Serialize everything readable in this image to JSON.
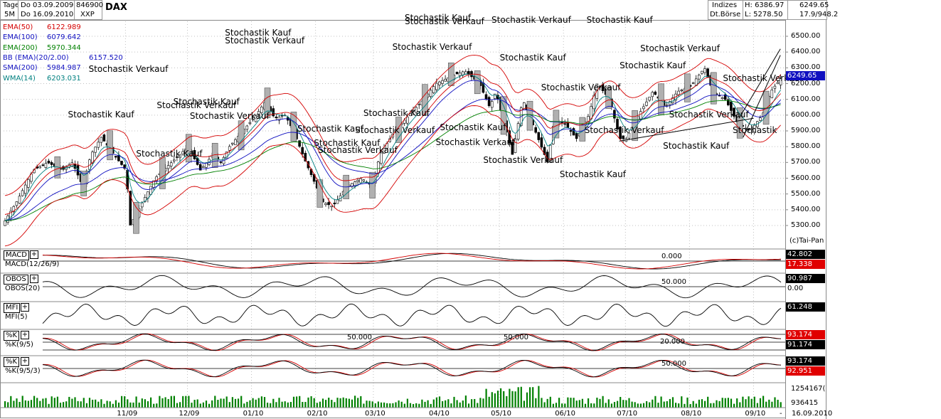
{
  "header": {
    "tage_label": "Tage",
    "period_label": "5M",
    "from_date": "Do 03.09.2009",
    "to_date": "Do 16.09.2010",
    "wkn": "846900",
    "exchange": "XXP",
    "symbol": "DAX",
    "market_type": "Indizes",
    "venue": "Dt.Börse",
    "high": "H: 6386.97",
    "low": "L: 5278.50",
    "last_price": "6249.65",
    "range_info": "17.9/948.2"
  },
  "indicators": [
    {
      "name": "EMA(50)",
      "value": "6122.989",
      "color": "#d40000"
    },
    {
      "name": "EMA(100)",
      "value": "6079.642",
      "color": "#1010c0"
    },
    {
      "name": "EMA(200)",
      "value": "5970.344",
      "color": "#008000"
    },
    {
      "name": "BB (EMA)(20/2.00)",
      "value": "6157.520",
      "color": "#1010c0"
    },
    {
      "name": "SMA(200)",
      "value": "5984.987",
      "color": "#1010c0"
    },
    {
      "name": "WMA(14)",
      "value": "6203.031",
      "color": "#008080"
    }
  ],
  "annotations": [
    {
      "text": "Stochastik Kauf",
      "date": "2009-10-20",
      "price": 6000
    },
    {
      "text": "Stochastik Verkauf",
      "date": "2009-10-30",
      "price": 6290
    },
    {
      "text": "Stochastik Kauf",
      "date": "2009-11-22",
      "price": 5750
    },
    {
      "text": "Stochastik Verkauf",
      "date": "2009-12-02",
      "price": 6060
    },
    {
      "text": "Stochastik Kauf",
      "date": "2009-12-10",
      "price": 6080
    },
    {
      "text": "Stochastik Verkauf",
      "date": "2009-12-18",
      "price": 5990
    },
    {
      "text": "Stochastik Kauf",
      "date": "2010-01-04",
      "price": 6520
    },
    {
      "text": "Stochastik Verkauf",
      "date": "2010-01-04",
      "price": 6470
    },
    {
      "text": "Stochastik Kauf",
      "date": "2010-02-08",
      "price": 5910
    },
    {
      "text": "Stochastik Kauf",
      "date": "2010-02-16",
      "price": 5820
    },
    {
      "text": "Stochastik Verkauf",
      "date": "2010-02-18",
      "price": 5775
    },
    {
      "text": "Stochastik Kauf",
      "date": "2010-03-12",
      "price": 6010
    },
    {
      "text": "Stochastik Verkauf",
      "date": "2010-03-08",
      "price": 5900
    },
    {
      "text": "Stochastik Verkauf",
      "date": "2010-03-26",
      "price": 6430
    },
    {
      "text": "Stochastik Kauf",
      "date": "2010-04-01",
      "price": 6615
    },
    {
      "text": "Stochastik Verkauf",
      "date": "2010-04-01",
      "price": 6590
    },
    {
      "text": "Stochastik Kauf",
      "date": "2010-04-18",
      "price": 5920
    },
    {
      "text": "Stochastik Verkauf",
      "date": "2010-04-16",
      "price": 5825
    },
    {
      "text": "Stochastik Kauf",
      "date": "2010-05-17",
      "price": 6360
    },
    {
      "text": "Stochastik Verkauf",
      "date": "2010-05-13",
      "price": 6600
    },
    {
      "text": "Stochastik Verkauf",
      "date": "2010-05-09",
      "price": 5710
    },
    {
      "text": "Stochastik Verkauf",
      "date": "2010-06-06",
      "price": 6170
    },
    {
      "text": "Stochastik Kauf",
      "date": "2010-06-15",
      "price": 5620
    },
    {
      "text": "Stochastik Kauf",
      "date": "2010-06-28",
      "price": 6600
    },
    {
      "text": "Stochastik Verkauf",
      "date": "2010-06-27",
      "price": 5900
    },
    {
      "text": "Stochastik Kauf",
      "date": "2010-07-14",
      "price": 6310
    },
    {
      "text": "Stochastik Verkauf",
      "date": "2010-07-24",
      "price": 6420
    },
    {
      "text": "Stochastik Kauf",
      "date": "2010-08-04",
      "price": 5800
    },
    {
      "text": "Stochastik Verkauf",
      "date": "2010-08-07",
      "price": 6000
    },
    {
      "text": "Stochastik Verkauf",
      "date": "2010-09-02",
      "price": 6230
    },
    {
      "text": "Stochastik",
      "date": "2010-09-12",
      "price": 5900
    }
  ],
  "price_axis": [
    "6500.00",
    "6400.00",
    "6300.00",
    "6200.00",
    "6100.00",
    "6000.00",
    "5900.00",
    "5800.00",
    "5700.00",
    "5600.00",
    "5500.00",
    "5400.00",
    "5300.00"
  ],
  "copyright": "(c)Tai-Pan",
  "panels": [
    {
      "button": "MACD",
      "label": "MACD(12/26/9)",
      "level": "0.000",
      "v1": "42.802",
      "v2": "17.338",
      "c1": "#000000",
      "c2": "#e00000"
    },
    {
      "button": "OBOS",
      "label": "OBOS(20)",
      "level": "50.000",
      "v1": "90.987",
      "v2": "0.00",
      "c1": "#000000",
      "c2": ""
    },
    {
      "button": "MFI",
      "label": "MFI(5)",
      "level": "",
      "v1": "61.248",
      "v2": "",
      "c1": "#000000",
      "c2": ""
    },
    {
      "button": "%K",
      "label": "%K(9/5)",
      "level": "50.000",
      "level2": "50.000",
      "level3": "20.000",
      "v1": "93.174",
      "v2": "91.174",
      "c1": "#e00000",
      "c2": "#000000"
    },
    {
      "button": "%K",
      "label": "%K(9/5/3)",
      "level": "50.000",
      "v1": "93.174",
      "v2": "92.951",
      "c1": "#000000",
      "c2": "#e00000"
    }
  ],
  "volume_axis": [
    "1254167(",
    "936415"
  ],
  "x_axis": [
    "11/09",
    "12/09",
    "01/10",
    "02/10",
    "03/10",
    "04/10",
    "05/10",
    "06/10",
    "07/10",
    "08/10",
    "09/10"
  ],
  "last_date": "16.09.2010",
  "x_axis_dash": "-",
  "chart_data": {
    "type": "candlestick",
    "title": "DAX",
    "period": {
      "from": "2009-09-03",
      "to": "2010-09-16"
    },
    "y_range": [
      5280,
      6560
    ],
    "high": 6386.97,
    "low": 5278.5,
    "last": 6249.65,
    "close_path": [
      [
        "2009-09-03",
        5300
      ],
      [
        "2009-09-10",
        5450
      ],
      [
        "2009-09-18",
        5650
      ],
      [
        "2009-09-25",
        5700
      ],
      [
        "2009-10-02",
        5650
      ],
      [
        "2009-10-07",
        5700
      ],
      [
        "2009-10-12",
        5550
      ],
      [
        "2009-10-16",
        5750
      ],
      [
        "2009-10-21",
        5860
      ],
      [
        "2009-10-27",
        5750
      ],
      [
        "2009-11-02",
        5650
      ],
      [
        "2009-11-04",
        5300
      ],
      [
        "2009-11-10",
        5450
      ],
      [
        "2009-11-16",
        5600
      ],
      [
        "2009-11-24",
        5700
      ],
      [
        "2009-12-02",
        5800
      ],
      [
        "2009-12-08",
        5650
      ],
      [
        "2009-12-14",
        5750
      ],
      [
        "2009-12-18",
        5700
      ],
      [
        "2009-12-22",
        5800
      ],
      [
        "2010-01-04",
        6000
      ],
      [
        "2010-01-08",
        6080
      ],
      [
        "2010-01-13",
        5980
      ],
      [
        "2010-01-18",
        6000
      ],
      [
        "2010-01-22",
        5900
      ],
      [
        "2010-01-28",
        5700
      ],
      [
        "2010-02-02",
        5550
      ],
      [
        "2010-02-05",
        5450
      ],
      [
        "2010-02-10",
        5420
      ],
      [
        "2010-02-17",
        5550
      ],
      [
        "2010-02-24",
        5600
      ],
      [
        "2010-03-01",
        5550
      ],
      [
        "2010-03-05",
        5750
      ],
      [
        "2010-03-12",
        5900
      ],
      [
        "2010-03-19",
        6000
      ],
      [
        "2010-03-26",
        6100
      ],
      [
        "2010-04-01",
        6200
      ],
      [
        "2010-04-09",
        6250
      ],
      [
        "2010-04-15",
        6280
      ],
      [
        "2010-04-22",
        6200
      ],
      [
        "2010-04-27",
        6050
      ],
      [
        "2010-04-30",
        6150
      ],
      [
        "2010-05-05",
        5900
      ],
      [
        "2010-05-08",
        5750
      ],
      [
        "2010-05-13",
        6100
      ],
      [
        "2010-05-19",
        5900
      ],
      [
        "2010-05-25",
        5700
      ],
      [
        "2010-05-28",
        5950
      ],
      [
        "2010-06-02",
        5950
      ],
      [
        "2010-06-08",
        5850
      ],
      [
        "2010-06-14",
        6000
      ],
      [
        "2010-06-18",
        6200
      ],
      [
        "2010-06-24",
        6100
      ],
      [
        "2010-06-29",
        5850
      ],
      [
        "2010-07-02",
        5850
      ],
      [
        "2010-07-08",
        6000
      ],
      [
        "2010-07-15",
        6150
      ],
      [
        "2010-07-21",
        6050
      ],
      [
        "2010-07-27",
        6150
      ],
      [
        "2010-08-02",
        6180
      ],
      [
        "2010-08-09",
        6300
      ],
      [
        "2010-08-13",
        6150
      ],
      [
        "2010-08-19",
        6100
      ],
      [
        "2010-08-25",
        5950
      ],
      [
        "2010-08-31",
        5900
      ],
      [
        "2010-09-06",
        6000
      ],
      [
        "2010-09-10",
        6150
      ],
      [
        "2010-09-16",
        6250
      ]
    ],
    "series": [
      {
        "name": "EMA(50)",
        "last": 6122.989
      },
      {
        "name": "EMA(100)",
        "last": 6079.642
      },
      {
        "name": "EMA(200)",
        "last": 5970.344
      },
      {
        "name": "BB (EMA)(20/2.00)",
        "last": 6157.52
      },
      {
        "name": "SMA(200)",
        "last": 5984.987
      },
      {
        "name": "WMA(14)",
        "last": 6203.031
      }
    ],
    "colors": {
      "candle_up": "#ffffff",
      "candle_down": "#000000",
      "bollinger": "#d40000",
      "highlight": "#b0b0b0",
      "volume": "#008000"
    }
  }
}
